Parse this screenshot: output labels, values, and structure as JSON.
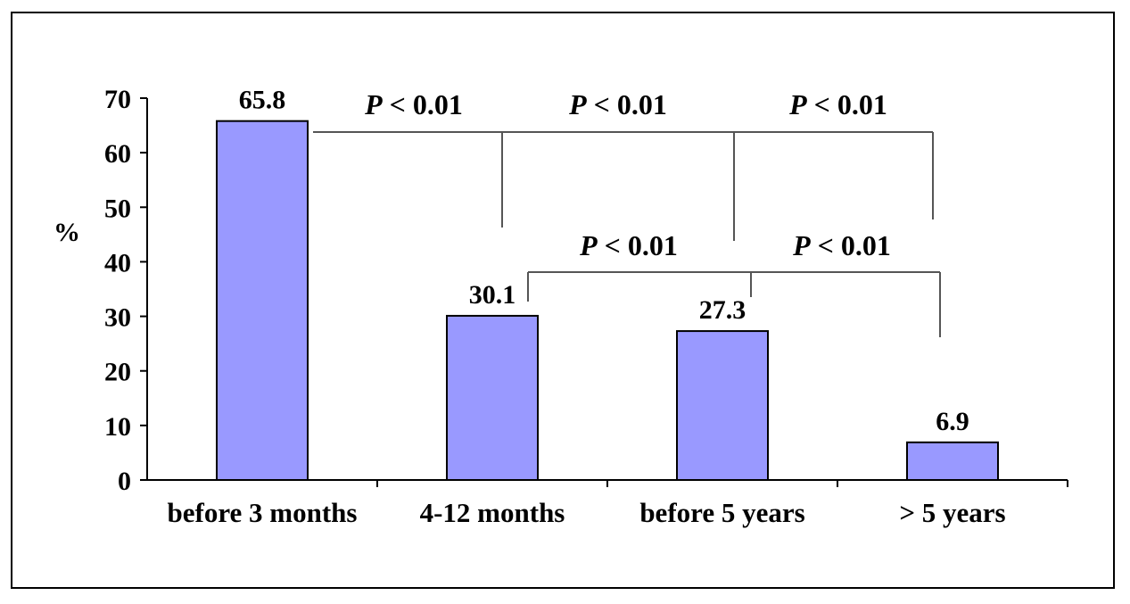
{
  "chart_data": {
    "type": "bar",
    "title": "",
    "xlabel": "",
    "ylabel": "%",
    "categories": [
      "before 3 months",
      "4-12 months",
      "before 5 years",
      "> 5 years"
    ],
    "values": [
      65.8,
      30.1,
      27.3,
      6.9
    ],
    "value_labels": [
      "65.8",
      "30.1",
      "27.3",
      "6.9"
    ],
    "ylim": [
      0,
      70
    ],
    "yticks": [
      0,
      10,
      20,
      30,
      40,
      50,
      60,
      70
    ],
    "grid": false,
    "legend": "none",
    "bar_color": "#9999ff",
    "significance": [
      {
        "from": "before 3 months",
        "to": "4-12 months",
        "label": "P < 0.01"
      },
      {
        "from": "before 3 months",
        "to": "before 5 years",
        "label": "P < 0.01"
      },
      {
        "from": "before 3 months",
        "to": "> 5 years",
        "label": "P < 0.01"
      },
      {
        "from": "4-12 months",
        "to": "before 5 years",
        "label": "P < 0.01"
      },
      {
        "from": "4-12 months",
        "to": "> 5 years",
        "label": "P < 0.01"
      }
    ]
  }
}
